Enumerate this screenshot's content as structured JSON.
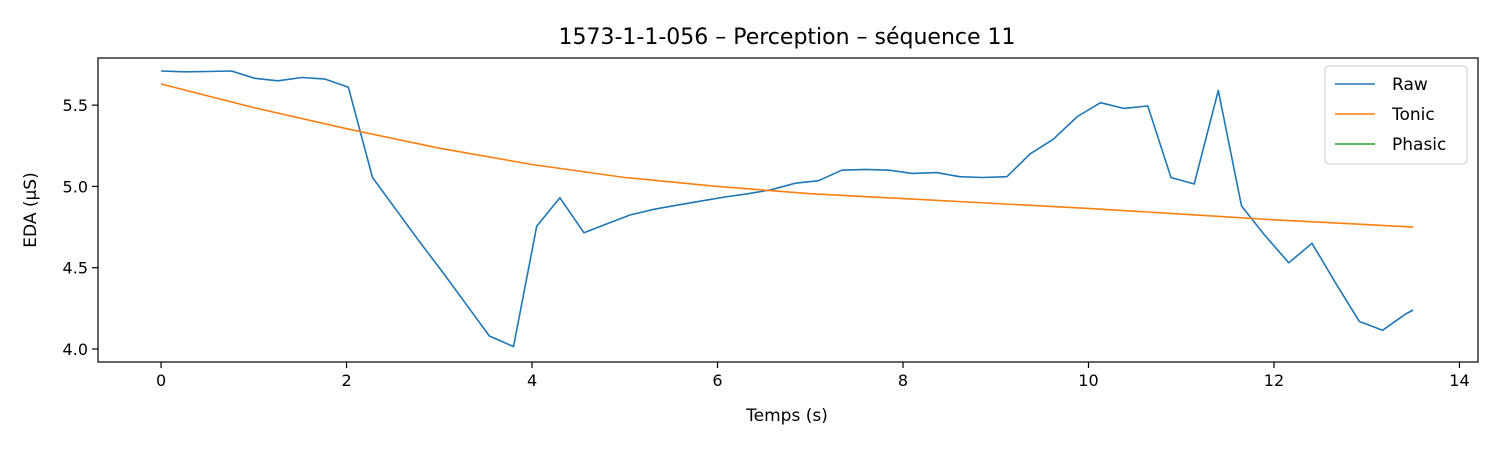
{
  "chart_data": {
    "type": "line",
    "title": "1573-1-1-056 – Perception – séquence 11",
    "xlabel": "Temps (s)",
    "ylabel": "EDA (µS)",
    "xlim": [
      -0.68,
      14.2
    ],
    "ylim": [
      3.92,
      5.79
    ],
    "xticks": [
      0,
      2,
      4,
      6,
      8,
      10,
      12,
      14
    ],
    "yticks": [
      4.0,
      4.5,
      5.0,
      5.5
    ],
    "xtick_labels": [
      "0",
      "2",
      "4",
      "6",
      "8",
      "10",
      "12",
      "14"
    ],
    "ytick_labels": [
      "4.0",
      "4.5",
      "5.0",
      "5.5"
    ],
    "grid": false,
    "legend_position": "top-right",
    "series": [
      {
        "name": "Raw",
        "color": "#1f77b4",
        "x": [
          0,
          0.25,
          0.5,
          0.76,
          1.01,
          1.26,
          1.52,
          1.77,
          2.02,
          2.28,
          2.53,
          2.78,
          3.04,
          3.29,
          3.54,
          3.8,
          4.05,
          4.3,
          4.56,
          4.81,
          5.06,
          5.32,
          5.57,
          5.82,
          6.08,
          6.33,
          6.58,
          6.84,
          7.09,
          7.34,
          7.6,
          7.85,
          8.1,
          8.36,
          8.61,
          8.86,
          9.12,
          9.37,
          9.62,
          9.88,
          10.13,
          10.38,
          10.64,
          10.89,
          11.14,
          11.4,
          11.65,
          11.9,
          12.16,
          12.41,
          12.66,
          12.92,
          13.17,
          13.42,
          13.5
        ],
        "y": [
          5.71,
          5.705,
          5.707,
          5.71,
          5.665,
          5.65,
          5.67,
          5.66,
          5.61,
          5.055,
          4.86,
          4.665,
          4.47,
          4.275,
          4.08,
          4.015,
          4.755,
          4.93,
          4.715,
          4.77,
          4.825,
          4.86,
          4.885,
          4.91,
          4.935,
          4.955,
          4.98,
          5.02,
          5.035,
          5.1,
          5.105,
          5.1,
          5.08,
          5.085,
          5.06,
          5.055,
          5.06,
          5.2,
          5.29,
          5.43,
          5.515,
          5.48,
          5.495,
          5.055,
          5.015,
          5.59,
          4.88,
          4.7,
          4.53,
          4.65,
          4.41,
          4.17,
          4.115,
          4.215,
          4.24
        ]
      },
      {
        "name": "Tonic",
        "color": "#ff7f0e",
        "x": [
          0,
          1,
          2,
          3,
          4,
          5,
          6,
          7,
          8,
          9,
          10,
          11,
          12,
          13,
          13.5
        ],
        "y": [
          5.63,
          5.485,
          5.355,
          5.235,
          5.135,
          5.055,
          5.0,
          4.955,
          4.925,
          4.895,
          4.865,
          4.83,
          4.795,
          4.765,
          4.75
        ]
      },
      {
        "name": "Phasic",
        "color": "#2ca02c",
        "x": [],
        "y": []
      }
    ]
  }
}
